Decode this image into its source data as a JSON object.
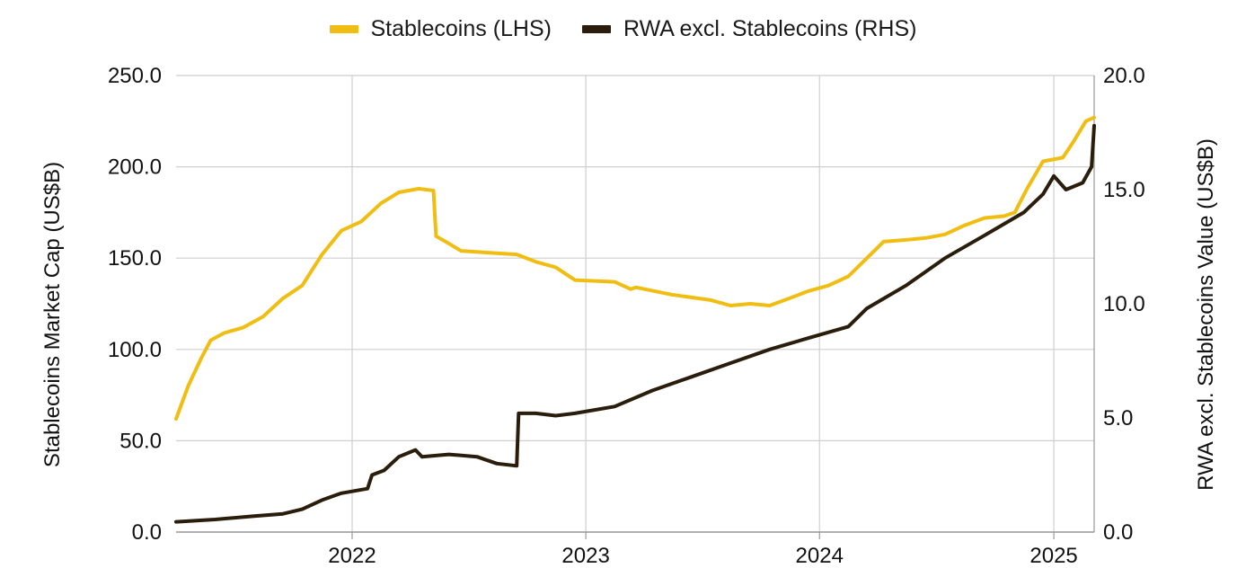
{
  "chart_data": {
    "type": "line",
    "title": "",
    "legend": {
      "placement": "top-center"
    },
    "grid": true,
    "x_axis": {
      "type": "date",
      "range": [
        "2021-04-01",
        "2025-03-05"
      ],
      "ticks": [
        {
          "value": "2022-01-01",
          "label": "2022"
        },
        {
          "value": "2023-01-01",
          "label": "2023"
        },
        {
          "value": "2024-01-01",
          "label": "2024"
        },
        {
          "value": "2025-01-01",
          "label": "2025"
        }
      ]
    },
    "y_left": {
      "label": "Stablecoins Market Cap (US$B)",
      "range": [
        0,
        250
      ],
      "ticks": [
        "0.0",
        "50.0",
        "100.0",
        "150.0",
        "200.0",
        "250.0"
      ]
    },
    "y_right": {
      "label": "RWA excl. Stablecoins Value (US$B)",
      "range": [
        0,
        20
      ],
      "ticks": [
        "0.0",
        "5.0",
        "10.0",
        "15.0",
        "20.0"
      ]
    },
    "series": [
      {
        "name": "Stablecoins (LHS)",
        "axis": "left",
        "color": "#F0BE12",
        "points": [
          [
            "2021-04-01",
            62
          ],
          [
            "2021-04-20",
            80
          ],
          [
            "2021-05-10",
            95
          ],
          [
            "2021-05-25",
            105
          ],
          [
            "2021-06-15",
            109
          ],
          [
            "2021-07-15",
            112
          ],
          [
            "2021-08-15",
            118
          ],
          [
            "2021-09-15",
            128
          ],
          [
            "2021-10-15",
            135
          ],
          [
            "2021-11-15",
            152
          ],
          [
            "2021-12-15",
            165
          ],
          [
            "2022-01-15",
            170
          ],
          [
            "2022-02-15",
            180
          ],
          [
            "2022-03-15",
            186
          ],
          [
            "2022-04-15",
            188
          ],
          [
            "2022-05-08",
            187
          ],
          [
            "2022-05-12",
            162
          ],
          [
            "2022-06-01",
            158
          ],
          [
            "2022-06-20",
            154
          ],
          [
            "2022-08-01",
            153
          ],
          [
            "2022-09-15",
            152
          ],
          [
            "2022-10-15",
            148
          ],
          [
            "2022-11-15",
            145
          ],
          [
            "2022-12-15",
            138
          ],
          [
            "2023-02-15",
            137
          ],
          [
            "2023-03-12",
            133
          ],
          [
            "2023-03-20",
            134
          ],
          [
            "2023-05-15",
            130
          ],
          [
            "2023-07-15",
            127
          ],
          [
            "2023-08-15",
            124
          ],
          [
            "2023-09-15",
            125
          ],
          [
            "2023-10-15",
            124
          ],
          [
            "2023-11-15",
            128
          ],
          [
            "2023-12-15",
            132
          ],
          [
            "2024-01-15",
            135
          ],
          [
            "2024-02-15",
            140
          ],
          [
            "2024-03-15",
            150
          ],
          [
            "2024-04-10",
            159
          ],
          [
            "2024-05-15",
            160
          ],
          [
            "2024-06-15",
            161
          ],
          [
            "2024-07-15",
            163
          ],
          [
            "2024-08-15",
            168
          ],
          [
            "2024-09-15",
            172
          ],
          [
            "2024-10-15",
            173
          ],
          [
            "2024-11-01",
            175
          ],
          [
            "2024-11-20",
            188
          ],
          [
            "2024-12-15",
            203
          ],
          [
            "2025-01-15",
            205
          ],
          [
            "2025-02-01",
            214
          ],
          [
            "2025-02-20",
            225
          ],
          [
            "2025-03-05",
            227
          ]
        ]
      },
      {
        "name": "RWA excl. Stablecoins (RHS)",
        "axis": "right",
        "color": "#2A1D0C",
        "points": [
          [
            "2021-04-01",
            0.45
          ],
          [
            "2021-06-01",
            0.55
          ],
          [
            "2021-08-01",
            0.7
          ],
          [
            "2021-09-15",
            0.8
          ],
          [
            "2021-10-15",
            1.0
          ],
          [
            "2021-11-15",
            1.4
          ],
          [
            "2021-12-15",
            1.7
          ],
          [
            "2022-01-25",
            1.9
          ],
          [
            "2022-02-01",
            2.5
          ],
          [
            "2022-02-20",
            2.7
          ],
          [
            "2022-03-15",
            3.3
          ],
          [
            "2022-04-10",
            3.6
          ],
          [
            "2022-04-20",
            3.3
          ],
          [
            "2022-06-01",
            3.4
          ],
          [
            "2022-07-15",
            3.3
          ],
          [
            "2022-08-15",
            3.0
          ],
          [
            "2022-09-15",
            2.9
          ],
          [
            "2022-09-18",
            5.2
          ],
          [
            "2022-10-15",
            5.2
          ],
          [
            "2022-11-15",
            5.1
          ],
          [
            "2022-12-15",
            5.2
          ],
          [
            "2023-02-15",
            5.5
          ],
          [
            "2023-04-15",
            6.2
          ],
          [
            "2023-06-15",
            6.8
          ],
          [
            "2023-08-15",
            7.4
          ],
          [
            "2023-10-15",
            8.0
          ],
          [
            "2023-12-15",
            8.5
          ],
          [
            "2024-02-15",
            9.0
          ],
          [
            "2024-03-15",
            9.8
          ],
          [
            "2024-05-15",
            10.8
          ],
          [
            "2024-07-15",
            12.0
          ],
          [
            "2024-09-15",
            13.0
          ],
          [
            "2024-11-15",
            14.0
          ],
          [
            "2024-12-15",
            14.8
          ],
          [
            "2025-01-01",
            15.6
          ],
          [
            "2025-01-20",
            15.0
          ],
          [
            "2025-02-15",
            15.3
          ],
          [
            "2025-03-01",
            16.0
          ],
          [
            "2025-03-05",
            17.8
          ]
        ]
      }
    ]
  }
}
